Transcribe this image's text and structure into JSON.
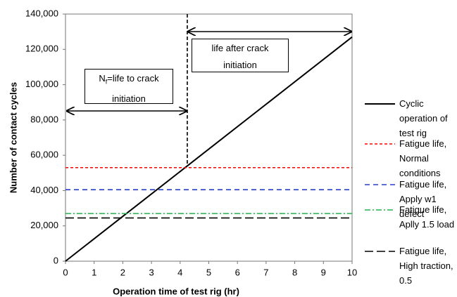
{
  "chart_data": {
    "type": "line",
    "xlabel": "Operation time of test rig (hr)",
    "ylabel": "Number of contact cycles",
    "xlim": [
      0,
      10
    ],
    "xticks": [
      0,
      1,
      2,
      3,
      4,
      5,
      6,
      7,
      8,
      9,
      10
    ],
    "ylim": [
      0,
      140000
    ],
    "yticks": [
      0,
      {
        "value": 20000,
        "label": "20,000"
      },
      {
        "value": 40000,
        "label": "40,000"
      },
      {
        "value": 60000,
        "label": "60,000"
      },
      {
        "value": 80000,
        "label": "80,000"
      },
      {
        "value": 100000,
        "label": "100,000"
      },
      {
        "value": 120000,
        "label": "120,000"
      },
      {
        "value": 140000,
        "label": "140,000"
      }
    ],
    "grid": false,
    "legend": "right",
    "series": [
      {
        "name": "Cyclic operation of test rig",
        "color": "#000000",
        "dash": "none",
        "x": [
          0,
          10
        ],
        "values": [
          0,
          127000
        ]
      },
      {
        "name": "Fatigue life, Normal conditions",
        "color": "#ff0000",
        "dash": "4,3",
        "x": [
          0,
          10
        ],
        "values": [
          53000,
          53000
        ]
      },
      {
        "name": "Fatigue life, Apply w1 defect",
        "color": "#2a3fc8",
        "dash": "7,5",
        "x": [
          0,
          10
        ],
        "values": [
          40500,
          40500
        ]
      },
      {
        "name": "Fatigue life, Aplly 1.5 load",
        "color": "#22b24c",
        "dash": "8,3,2,3",
        "x": [
          0,
          10
        ],
        "values": [
          27000,
          27000
        ]
      },
      {
        "name": "Fatigue life, High traction, 0.5",
        "color": "#000000",
        "dash": "12,5",
        "x": [
          0,
          10
        ],
        "values": [
          24500,
          24500
        ]
      }
    ],
    "vertical_line": {
      "x": 4.25
    },
    "annotations": [
      {
        "main": "N",
        "sub": "f",
        "rest": "=life to crack initiation"
      },
      {
        "text": "life after crack initiation"
      }
    ]
  }
}
